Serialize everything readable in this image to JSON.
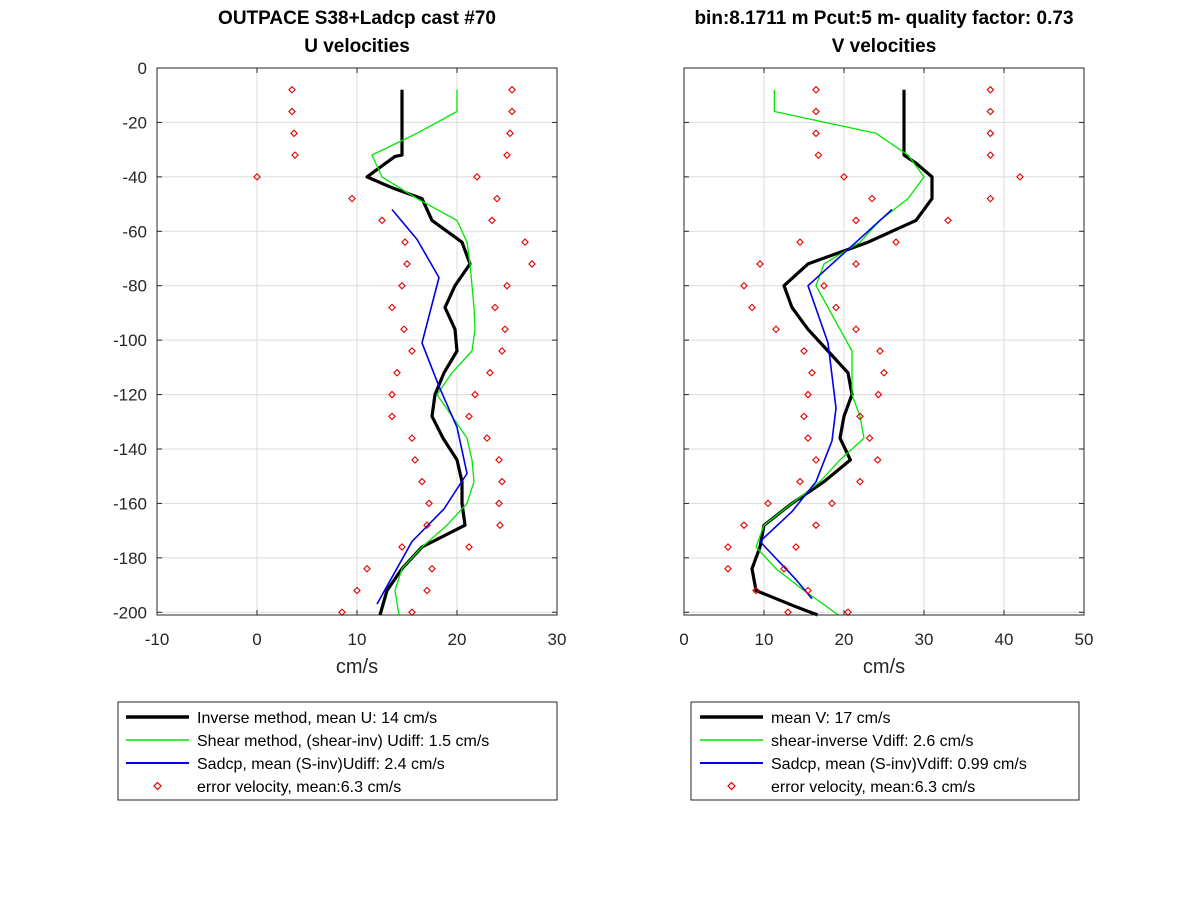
{
  "figure": {
    "title_left_1": "OUTPACE S38+Ladcp cast #70",
    "title_left_2": "U velocities",
    "title_right_1": "bin:8.1711 m  Pcut:5 m- quality factor:  0.73",
    "title_right_2": "V velocities"
  },
  "colors": {
    "inverse": "#000000",
    "shear": "#00e600",
    "sadcp": "#0000e6",
    "error": "#e60000",
    "grid": "#dcdcdc",
    "axis": "#262626"
  },
  "chart_data": [
    {
      "type": "line",
      "title": "U velocities",
      "xlabel": "cm/s",
      "ylabel": "",
      "xlim": [
        -10,
        30
      ],
      "ylim": [
        -201,
        0
      ],
      "xticks": [
        -10,
        0,
        10,
        20,
        30
      ],
      "yticks": [
        0,
        -20,
        -40,
        -60,
        -80,
        -100,
        -120,
        -140,
        -160,
        -180,
        -200
      ],
      "grid": true,
      "legend": {
        "placement": "below",
        "entries": [
          "Inverse method, mean U:  14 cm/s",
          "Shear method, (shear-inv)  Udiff:  1.5 cm/s",
          "Sadcp, mean (S-inv)Udiff: 2.4 cm/s",
          "error velocity, mean:6.3 cm/s"
        ]
      },
      "series": [
        {
          "name": "Inverse method, mean U:  14 cm/s",
          "style": "line-thick",
          "color": "#000000",
          "points": [
            [
              14.5,
              -8
            ],
            [
              14.5,
              -16
            ],
            [
              14.5,
              -24
            ],
            [
              14.5,
              -32
            ],
            [
              13.8,
              -32.5
            ],
            [
              11,
              -40
            ],
            [
              13.5,
              -44
            ],
            [
              16.5,
              -48
            ],
            [
              17.5,
              -56
            ],
            [
              20.5,
              -64
            ],
            [
              21.3,
              -72
            ],
            [
              19.8,
              -80
            ],
            [
              18.8,
              -88
            ],
            [
              19.8,
              -96
            ],
            [
              20,
              -104
            ],
            [
              18.7,
              -112
            ],
            [
              17.8,
              -120
            ],
            [
              17.5,
              -128
            ],
            [
              18.6,
              -136
            ],
            [
              20,
              -144
            ],
            [
              20.5,
              -152
            ],
            [
              20.5,
              -160
            ],
            [
              20.8,
              -168
            ],
            [
              16.5,
              -176
            ],
            [
              14.5,
              -184
            ],
            [
              13,
              -192
            ],
            [
              12.3,
              -201
            ]
          ]
        },
        {
          "name": "Shear method, (shear-inv)  Udiff:  1.5 cm/s",
          "style": "line",
          "color": "#00e600",
          "points": [
            [
              20,
              -8
            ],
            [
              20,
              -16
            ],
            [
              16,
              -24
            ],
            [
              11.5,
              -32
            ],
            [
              12.5,
              -40
            ],
            [
              16,
              -48
            ],
            [
              20,
              -56
            ],
            [
              21,
              -64
            ],
            [
              21.3,
              -72
            ],
            [
              21.5,
              -80
            ],
            [
              21.7,
              -88
            ],
            [
              21.8,
              -96
            ],
            [
              21.5,
              -104
            ],
            [
              19.5,
              -112
            ],
            [
              18,
              -120
            ],
            [
              19.5,
              -128
            ],
            [
              21,
              -136
            ],
            [
              21.5,
              -144
            ],
            [
              21.7,
              -152
            ],
            [
              21,
              -160
            ],
            [
              19,
              -168
            ],
            [
              16.5,
              -176
            ],
            [
              14.5,
              -184
            ],
            [
              13.8,
              -192
            ],
            [
              14.2,
              -201
            ]
          ]
        },
        {
          "name": "Sadcp, mean (S-inv)Udiff: 2.4 cm/s",
          "style": "line",
          "color": "#0000e6",
          "points": [
            [
              13.5,
              -52
            ],
            [
              16,
              -63
            ],
            [
              18.2,
              -77
            ],
            [
              16.5,
              -101
            ],
            [
              18.2,
              -117
            ],
            [
              20,
              -132
            ],
            [
              21,
              -149
            ],
            [
              18.7,
              -162
            ],
            [
              15.5,
              -174
            ],
            [
              12,
              -197
            ]
          ]
        },
        {
          "name": "error velocity, mean:6.3 cm/s",
          "style": "markers",
          "color": "#e60000",
          "points": [
            [
              3.5,
              -8
            ],
            [
              25.5,
              -8
            ],
            [
              3.5,
              -16
            ],
            [
              25.5,
              -16
            ],
            [
              3.7,
              -24
            ],
            [
              25.3,
              -24
            ],
            [
              3.8,
              -32
            ],
            [
              25,
              -32
            ],
            [
              0,
              -40
            ],
            [
              22,
              -40
            ],
            [
              9.5,
              -48
            ],
            [
              24,
              -48
            ],
            [
              12.5,
              -56
            ],
            [
              23.5,
              -56
            ],
            [
              14.8,
              -64
            ],
            [
              26.8,
              -64
            ],
            [
              15,
              -72
            ],
            [
              27.5,
              -72
            ],
            [
              14.5,
              -80
            ],
            [
              25,
              -80
            ],
            [
              13.5,
              -88
            ],
            [
              23.8,
              -88
            ],
            [
              14.7,
              -96
            ],
            [
              24.8,
              -96
            ],
            [
              15.5,
              -104
            ],
            [
              24.5,
              -104
            ],
            [
              14,
              -112
            ],
            [
              23.3,
              -112
            ],
            [
              13.5,
              -120
            ],
            [
              21.8,
              -120
            ],
            [
              13.5,
              -128
            ],
            [
              21.2,
              -128
            ],
            [
              15.5,
              -136
            ],
            [
              23,
              -136
            ],
            [
              15.8,
              -144
            ],
            [
              24.2,
              -144
            ],
            [
              16.5,
              -152
            ],
            [
              24.5,
              -152
            ],
            [
              17.2,
              -160
            ],
            [
              24.2,
              -160
            ],
            [
              17,
              -168
            ],
            [
              24.3,
              -168
            ],
            [
              14.5,
              -176
            ],
            [
              21.2,
              -176
            ],
            [
              11,
              -184
            ],
            [
              17.5,
              -184
            ],
            [
              10,
              -192
            ],
            [
              17,
              -192
            ],
            [
              8.5,
              -200
            ],
            [
              15.5,
              -200
            ]
          ]
        }
      ]
    },
    {
      "type": "line",
      "title": "V velocities",
      "xlabel": "cm/s",
      "ylabel": "",
      "xlim": [
        0,
        50
      ],
      "ylim": [
        -201,
        0
      ],
      "xticks": [
        0,
        10,
        20,
        30,
        40,
        50
      ],
      "yticks": [
        0,
        -20,
        -40,
        -60,
        -80,
        -100,
        -120,
        -140,
        -160,
        -180,
        -200
      ],
      "grid": true,
      "legend": {
        "placement": "below",
        "entries": [
          "mean V:  17 cm/s",
          "shear-inverse Vdiff:  2.6 cm/s",
          "Sadcp, mean (S-inv)Vdiff: 0.99 cm/s",
          "error velocity, mean:6.3 cm/s"
        ]
      },
      "series": [
        {
          "name": "mean V:  17 cm/s",
          "style": "line-thick",
          "color": "#000000",
          "points": [
            [
              27.5,
              -8
            ],
            [
              27.5,
              -16
            ],
            [
              27.5,
              -24
            ],
            [
              27.5,
              -32
            ],
            [
              29,
              -35
            ],
            [
              31,
              -40
            ],
            [
              31,
              -48
            ],
            [
              29,
              -56
            ],
            [
              23,
              -64
            ],
            [
              15.5,
              -72
            ],
            [
              12.5,
              -80
            ],
            [
              13.5,
              -88
            ],
            [
              15.5,
              -96
            ],
            [
              18,
              -104
            ],
            [
              20.5,
              -112
            ],
            [
              21,
              -120
            ],
            [
              20,
              -128
            ],
            [
              19.5,
              -136
            ],
            [
              20.8,
              -144
            ],
            [
              17.5,
              -152
            ],
            [
              13.5,
              -160
            ],
            [
              10,
              -168
            ],
            [
              9.5,
              -176
            ],
            [
              8.5,
              -184
            ],
            [
              9,
              -192
            ],
            [
              14,
              -198
            ],
            [
              16.7,
              -201
            ]
          ]
        },
        {
          "name": "shear-inverse Vdiff:  2.6 cm/s",
          "style": "line",
          "color": "#00e600",
          "points": [
            [
              11.3,
              -8
            ],
            [
              11.3,
              -16
            ],
            [
              24,
              -24
            ],
            [
              28,
              -32
            ],
            [
              30,
              -40
            ],
            [
              28,
              -48
            ],
            [
              24.5,
              -56
            ],
            [
              22,
              -64
            ],
            [
              17.5,
              -72
            ],
            [
              16.5,
              -80
            ],
            [
              18,
              -88
            ],
            [
              19.5,
              -96
            ],
            [
              21,
              -104
            ],
            [
              21,
              -112
            ],
            [
              21,
              -120
            ],
            [
              22,
              -128
            ],
            [
              22.5,
              -136
            ],
            [
              19.5,
              -144
            ],
            [
              17,
              -152
            ],
            [
              13.5,
              -160
            ],
            [
              10,
              -168
            ],
            [
              9,
              -176
            ],
            [
              11.5,
              -184
            ],
            [
              15,
              -192
            ],
            [
              19.3,
              -201
            ]
          ]
        },
        {
          "name": "Sadcp, mean (S-inv)Vdiff: 0.99 cm/s",
          "style": "line",
          "color": "#0000e6",
          "points": [
            [
              26,
              -52
            ],
            [
              21.5,
              -64
            ],
            [
              15.5,
              -80
            ],
            [
              18,
              -101
            ],
            [
              19,
              -125
            ],
            [
              18.5,
              -137
            ],
            [
              16.5,
              -152
            ],
            [
              13.5,
              -163
            ],
            [
              9.5,
              -174
            ],
            [
              14,
              -188
            ],
            [
              16,
              -195
            ]
          ]
        },
        {
          "name": "error velocity, mean:6.3 cm/s",
          "style": "markers",
          "color": "#e60000",
          "points": [
            [
              16.5,
              -8
            ],
            [
              38.3,
              -8
            ],
            [
              16.5,
              -16
            ],
            [
              38.3,
              -16
            ],
            [
              16.5,
              -24
            ],
            [
              38.3,
              -24
            ],
            [
              16.8,
              -32
            ],
            [
              38.3,
              -32
            ],
            [
              20,
              -40
            ],
            [
              42,
              -40
            ],
            [
              23.5,
              -48
            ],
            [
              38.3,
              -48
            ],
            [
              21.5,
              -56
            ],
            [
              33,
              -56
            ],
            [
              14.5,
              -64
            ],
            [
              26.5,
              -64
            ],
            [
              9.5,
              -72
            ],
            [
              21.5,
              -72
            ],
            [
              7.5,
              -80
            ],
            [
              17.5,
              -80
            ],
            [
              8.5,
              -88
            ],
            [
              19,
              -88
            ],
            [
              11.5,
              -96
            ],
            [
              21.5,
              -96
            ],
            [
              15,
              -104
            ],
            [
              24.5,
              -104
            ],
            [
              16,
              -112
            ],
            [
              25,
              -112
            ],
            [
              15.5,
              -120
            ],
            [
              24.3,
              -120
            ],
            [
              15,
              -128
            ],
            [
              22,
              -128
            ],
            [
              15.5,
              -136
            ],
            [
              23.2,
              -136
            ],
            [
              16.5,
              -144
            ],
            [
              24.2,
              -144
            ],
            [
              14.5,
              -152
            ],
            [
              22,
              -152
            ],
            [
              10.5,
              -160
            ],
            [
              18.5,
              -160
            ],
            [
              7.5,
              -168
            ],
            [
              16.5,
              -168
            ],
            [
              5.5,
              -176
            ],
            [
              14,
              -176
            ],
            [
              5.5,
              -184
            ],
            [
              12.5,
              -184
            ],
            [
              9,
              -192
            ],
            [
              15.5,
              -192
            ],
            [
              13,
              -200
            ],
            [
              20.5,
              -200
            ]
          ]
        }
      ]
    }
  ]
}
